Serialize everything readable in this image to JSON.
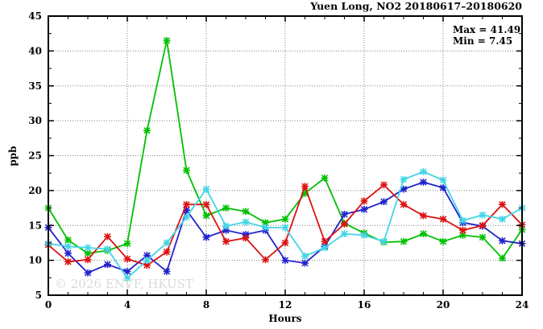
{
  "chart_data": {
    "type": "line",
    "title": "Yuen Long, NO2 20180617–20180620",
    "xlabel": "Hours",
    "ylabel": "ppb",
    "xlim": [
      0,
      24
    ],
    "ylim": [
      5,
      45
    ],
    "x_ticks": [
      0,
      4,
      8,
      12,
      16,
      20,
      24
    ],
    "y_ticks": [
      5,
      10,
      15,
      20,
      25,
      30,
      35,
      40,
      45
    ],
    "x_minor_step": 1,
    "y_minor_step": 2.5,
    "grid": "dotted",
    "legend_position": "none",
    "annotations": {
      "max_label": "Max = 41.49",
      "min_label": "Min =  7.45",
      "max": 41.49,
      "min": 7.45
    },
    "watermark": "© 2026 ENVF, HKUST",
    "x": [
      0,
      1,
      2,
      3,
      4,
      5,
      6,
      7,
      8,
      9,
      10,
      11,
      12,
      13,
      14,
      15,
      16,
      17,
      18,
      19,
      20,
      21,
      22,
      23,
      24
    ],
    "series": [
      {
        "name": "green",
        "color": "#00c000",
        "values": [
          17.5,
          12.9,
          11.0,
          11.4,
          12.4,
          28.6,
          41.49,
          22.9,
          16.4,
          17.5,
          17.0,
          15.4,
          15.9,
          19.6,
          21.8,
          15.3,
          13.9,
          12.6,
          12.7,
          13.8,
          12.7,
          13.6,
          13.3,
          10.3,
          14.4
        ]
      },
      {
        "name": "blue",
        "color": "#2222cc",
        "values": [
          14.7,
          11.0,
          8.2,
          9.4,
          8.4,
          10.7,
          8.4,
          17.2,
          13.3,
          14.3,
          13.7,
          14.3,
          10.0,
          9.6,
          12.0,
          16.6,
          17.3,
          18.4,
          20.2,
          21.2,
          20.4,
          15.4,
          14.9,
          12.8,
          12.4
        ]
      },
      {
        "name": "red",
        "color": "#dd1111",
        "values": [
          12.2,
          9.8,
          10.1,
          13.4,
          10.2,
          9.3,
          11.2,
          18.0,
          18.0,
          12.7,
          13.2,
          10.1,
          12.5,
          20.6,
          12.7,
          15.2,
          18.5,
          20.8,
          18.0,
          16.4,
          15.9,
          14.3,
          15.0,
          18.0,
          15.1
        ]
      },
      {
        "name": "cyan",
        "color": "#44d5e6",
        "values": [
          12.4,
          12.0,
          11.8,
          11.6,
          7.45,
          10.0,
          12.5,
          16.2,
          20.2,
          14.9,
          15.5,
          14.7,
          14.7,
          10.6,
          11.8,
          13.8,
          13.6,
          12.7,
          21.6,
          22.7,
          21.5,
          15.7,
          16.5,
          15.9,
          17.5
        ]
      }
    ]
  }
}
